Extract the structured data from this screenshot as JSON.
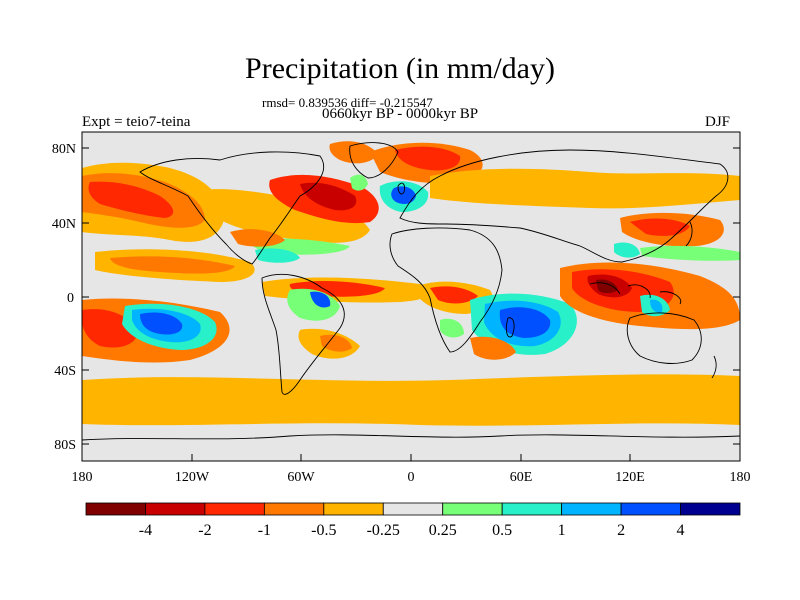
{
  "title": "Precipitation (in mm/day)",
  "stats_line": "rmsd= 0.839536 diff= -0.215547",
  "period_line": "0660kyr BP - 0000kyr BP",
  "left_label": "Expt = teio7-teina",
  "right_label": "DJF",
  "lat_ticks": [
    "80N",
    "40N",
    "0",
    "40S",
    "80S"
  ],
  "lon_ticks": [
    "180",
    "120W",
    "60W",
    "0",
    "60E",
    "120E",
    "180"
  ],
  "colorbar_labels": [
    "-4",
    "-2",
    "-1",
    "-0.5",
    "-0.25",
    "0.25",
    "0.5",
    "1",
    "2",
    "4"
  ],
  "colors": {
    "bins": [
      "#800000",
      "#c80000",
      "#ff2800",
      "#ff7800",
      "#ffb400",
      "#e6e6e6",
      "#78ff78",
      "#28f0c8",
      "#00b4ff",
      "#0050ff",
      "#000090"
    ],
    "ocean_background": "#e6e6e6",
    "coastline": "#000000"
  }
}
